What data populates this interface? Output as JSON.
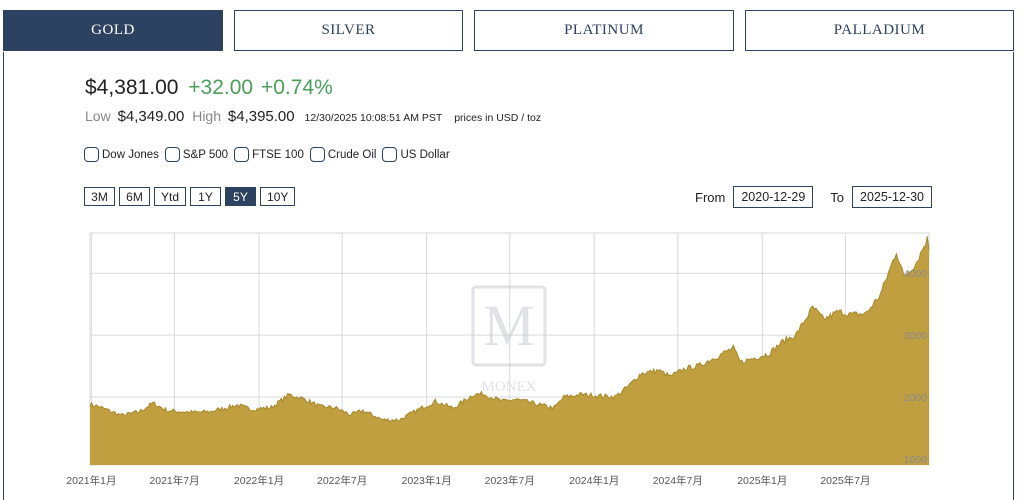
{
  "tabs": [
    {
      "label": "GOLD",
      "active": true
    },
    {
      "label": "SILVER",
      "active": false
    },
    {
      "label": "PLATINUM",
      "active": false
    },
    {
      "label": "PALLADIUM",
      "active": false
    }
  ],
  "quote": {
    "price": "$4,381.00",
    "change": "+32.00",
    "change_pct": "+0.74%",
    "low_label": "Low",
    "low": "$4,349.00",
    "high_label": "High",
    "high": "$4,395.00",
    "timestamp": "12/30/2025 10:08:51 AM PST",
    "unit_note": "prices in USD / toz"
  },
  "compare": [
    "Dow Jones",
    "S&P 500",
    "FTSE 100",
    "Crude Oil",
    "US Dollar"
  ],
  "range_buttons": [
    {
      "label": "3M",
      "active": false
    },
    {
      "label": "6M",
      "active": false
    },
    {
      "label": "Ytd",
      "active": false
    },
    {
      "label": "1Y",
      "active": false
    },
    {
      "label": "5Y",
      "active": true
    },
    {
      "label": "10Y",
      "active": false
    }
  ],
  "date_range": {
    "from_label": "From",
    "from": "2020-12-29",
    "to_label": "To",
    "to": "2025-12-30"
  },
  "watermark": "MONEX",
  "colors": {
    "navy": "#2d4160",
    "gold_fill": "#bf9d3d",
    "gold_line": "#a9882c",
    "up": "#4aa05a",
    "grid": "#d9d9d9"
  },
  "chart_data": {
    "type": "area",
    "title": "",
    "xlabel": "",
    "ylabel": "",
    "ylim": [
      900,
      4650
    ],
    "yticks": [
      1000,
      2000,
      3000,
      4000
    ],
    "xticks": [
      "2021年1月",
      "2021年7月",
      "2022年1月",
      "2022年7月",
      "2023年1月",
      "2023年7月",
      "2024年1月",
      "2024年7月",
      "2025年1月",
      "2025年7月"
    ],
    "xlim": [
      "2020-12-29",
      "2025-12-30"
    ],
    "x": [
      "2020-12-29",
      "2021-01-15",
      "2021-03-08",
      "2021-04-15",
      "2021-05-15",
      "2021-06-15",
      "2021-08-10",
      "2021-09-15",
      "2021-11-15",
      "2021-12-15",
      "2022-01-28",
      "2022-03-08",
      "2022-04-15",
      "2022-05-15",
      "2022-06-15",
      "2022-07-20",
      "2022-08-15",
      "2022-09-28",
      "2022-11-03",
      "2022-12-15",
      "2023-01-20",
      "2023-02-28",
      "2023-04-13",
      "2023-05-04",
      "2023-06-15",
      "2023-07-15",
      "2023-08-15",
      "2023-10-05",
      "2023-10-27",
      "2023-12-04",
      "2024-01-15",
      "2024-02-15",
      "2024-03-15",
      "2024-04-12",
      "2024-05-20",
      "2024-06-15",
      "2024-07-17",
      "2024-08-15",
      "2024-09-15",
      "2024-10-30",
      "2024-11-14",
      "2024-12-15",
      "2025-01-15",
      "2025-02-15",
      "2025-03-15",
      "2025-04-21",
      "2025-05-15",
      "2025-06-15",
      "2025-07-15",
      "2025-08-15",
      "2025-09-15",
      "2025-10-20",
      "2025-11-05",
      "2025-12-01",
      "2025-12-26",
      "2025-12-30"
    ],
    "series": [
      {
        "name": "",
        "values": [
          1880,
          1850,
          1700,
          1760,
          1900,
          1780,
          1750,
          1760,
          1870,
          1800,
          1830,
          2040,
          1950,
          1840,
          1830,
          1710,
          1780,
          1630,
          1630,
          1800,
          1930,
          1820,
          2040,
          2050,
          1930,
          1960,
          1910,
          1820,
          2000,
          2040,
          2020,
          2000,
          2170,
          2380,
          2430,
          2330,
          2460,
          2500,
          2620,
          2790,
          2560,
          2630,
          2700,
          2900,
          3000,
          3450,
          3250,
          3380,
          3330,
          3350,
          3650,
          4350,
          3950,
          4150,
          4550,
          4381
        ]
      }
    ]
  }
}
